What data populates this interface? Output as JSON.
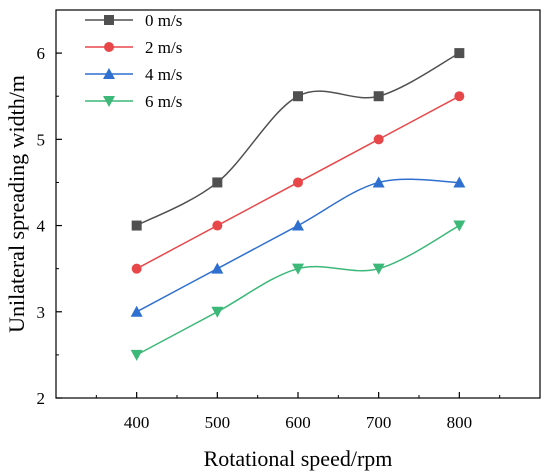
{
  "chart_data": {
    "type": "line",
    "x": [
      400,
      500,
      600,
      700,
      800
    ],
    "xlabel": "Rotational speed/rpm",
    "ylabel": "Unilateral spreading width/m",
    "xlim": [
      300,
      900
    ],
    "ylim": [
      2,
      6.5
    ],
    "x_ticks": [
      400,
      500,
      600,
      700,
      800
    ],
    "y_ticks": [
      2,
      3,
      4,
      5,
      6
    ],
    "grid": false,
    "smooth": true,
    "legend_position": "top-left",
    "series": [
      {
        "name": "0 m/s",
        "color": "#505050",
        "marker": "square",
        "values": [
          4.0,
          4.5,
          5.5,
          5.5,
          6.0
        ]
      },
      {
        "name": "2 m/s",
        "color": "#e8474a",
        "marker": "circle",
        "values": [
          3.5,
          4.0,
          4.5,
          5.0,
          5.5
        ]
      },
      {
        "name": "4 m/s",
        "color": "#2f6fd0",
        "marker": "triangle-up",
        "values": [
          3.0,
          3.5,
          4.0,
          4.5,
          4.5
        ]
      },
      {
        "name": "6 m/s",
        "color": "#3cb878",
        "marker": "triangle-down",
        "values": [
          2.5,
          3.0,
          3.5,
          3.5,
          4.0
        ]
      }
    ]
  }
}
